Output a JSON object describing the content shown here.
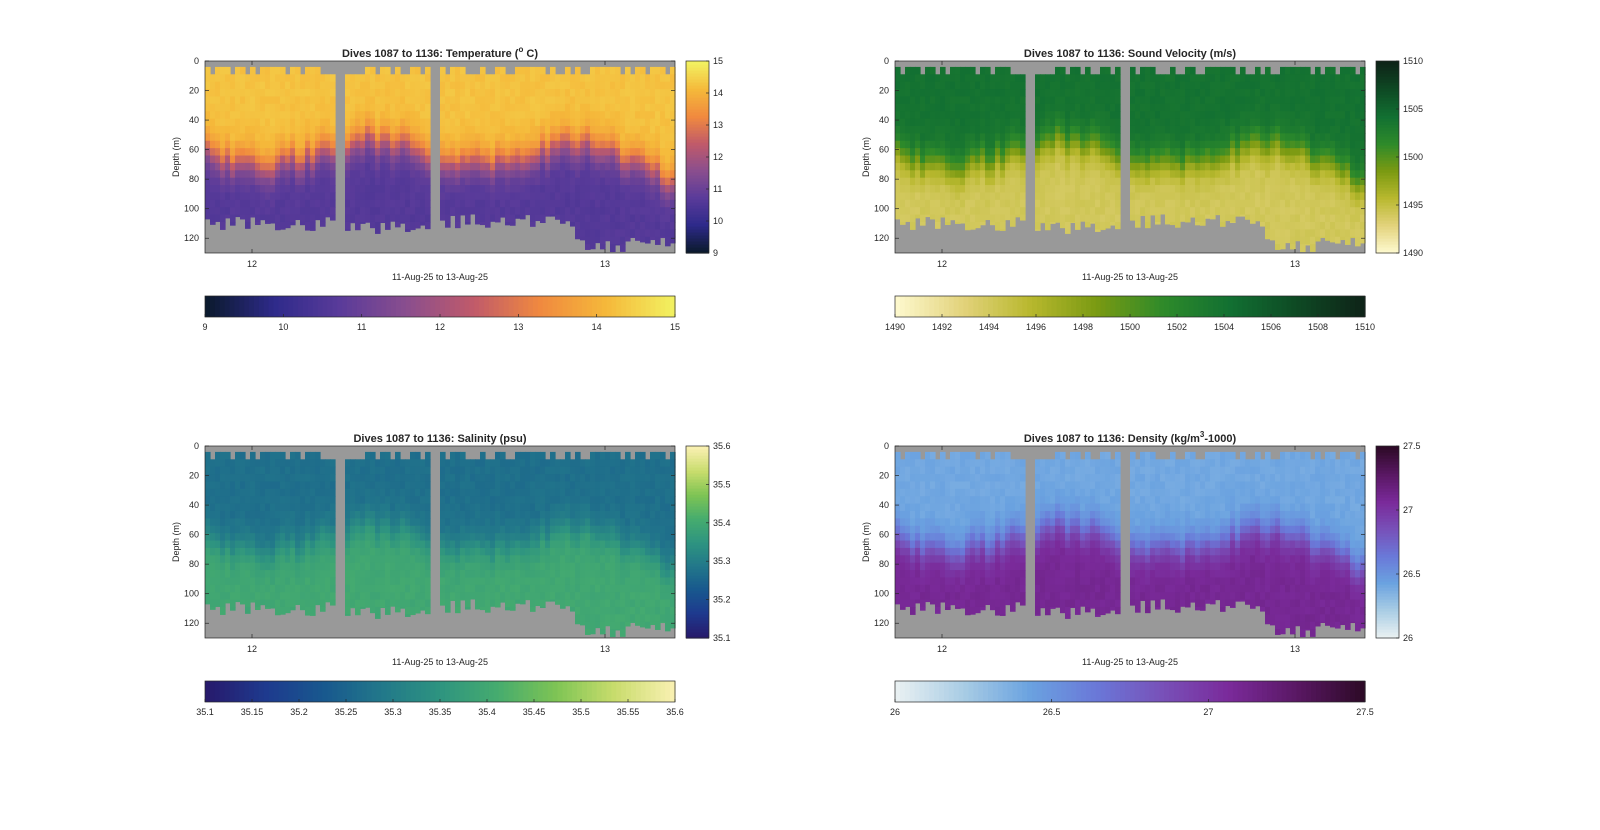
{
  "figure": {
    "background": "#ffffff",
    "mask_color": "#999999"
  },
  "chart_data": [
    {
      "type": "heatmap",
      "id": "temperature",
      "title_prefix": "Dives 1087 to 1136: Temperature (",
      "title_sup": "o",
      "title_suffix": " C)",
      "ylabel": "Depth (m)",
      "xlabel": "11-Aug-25 to 13-Aug-25",
      "x_ticks": [
        "12",
        "13"
      ],
      "y_ticks": [
        "0",
        "20",
        "40",
        "60",
        "80",
        "100",
        "120"
      ],
      "ylim": [
        0,
        130
      ],
      "y_reversed": true,
      "clim": [
        9,
        15
      ],
      "side_colorbar_ticks": [
        "9",
        "10",
        "11",
        "12",
        "13",
        "14",
        "15"
      ],
      "bottom_colorbar_ticks": [
        "9",
        "10",
        "11",
        "12",
        "13",
        "14",
        "15"
      ],
      "colormap": [
        "#0b1a2e",
        "#2e2a8a",
        "#5a3b9a",
        "#8a4e8e",
        "#c05a6a",
        "#f0893f",
        "#f5b83a",
        "#f2f060"
      ],
      "profile": {
        "surface": 14.3,
        "deep": 10.6,
        "thermocline_depth_m": 60
      }
    },
    {
      "type": "heatmap",
      "id": "sound-velocity",
      "title_prefix": "Dives 1087 to 1136: Sound Velocity (m/s)",
      "title_sup": "",
      "title_suffix": "",
      "ylabel": "Depth (m)",
      "xlabel": "11-Aug-25 to 13-Aug-25",
      "x_ticks": [
        "12",
        "13"
      ],
      "y_ticks": [
        "0",
        "20",
        "40",
        "60",
        "80",
        "100",
        "120"
      ],
      "ylim": [
        0,
        130
      ],
      "y_reversed": true,
      "clim": [
        1490,
        1510
      ],
      "side_colorbar_ticks": [
        "1490",
        "1495",
        "1500",
        "1505",
        "1510"
      ],
      "bottom_colorbar_ticks": [
        "1490",
        "1492",
        "1494",
        "1496",
        "1498",
        "1500",
        "1502",
        "1504",
        "1506",
        "1508",
        "1510"
      ],
      "colormap": [
        "#fdf8cc",
        "#e2d27a",
        "#b8b82e",
        "#7a9a12",
        "#2e8a2a",
        "#127032",
        "#0e4a24",
        "#0e2418"
      ],
      "profile": {
        "surface": 1504,
        "deep": 1494,
        "thermocline_depth_m": 60
      }
    },
    {
      "type": "heatmap",
      "id": "salinity",
      "title_prefix": "Dives 1087 to 1136: Salinity (psu)",
      "title_sup": "",
      "title_suffix": "",
      "ylabel": "Depth (m)",
      "xlabel": "11-Aug-25 to 13-Aug-25",
      "x_ticks": [
        "12",
        "13"
      ],
      "y_ticks": [
        "0",
        "20",
        "40",
        "60",
        "80",
        "100",
        "120"
      ],
      "ylim": [
        0,
        130
      ],
      "y_reversed": true,
      "clim": [
        35.1,
        35.6
      ],
      "side_colorbar_ticks": [
        "35.1",
        "35.2",
        "35.3",
        "35.4",
        "35.5",
        "35.6"
      ],
      "bottom_colorbar_ticks": [
        "35.1",
        "35.15",
        "35.2",
        "35.25",
        "35.3",
        "35.35",
        "35.4",
        "35.45",
        "35.5",
        "35.55",
        "35.6"
      ],
      "colormap": [
        "#271a6c",
        "#1e3a8e",
        "#18588e",
        "#22788a",
        "#2e9480",
        "#46ac6e",
        "#7ec454",
        "#c8dc6c",
        "#f8f0b0"
      ],
      "profile": {
        "surface": 35.27,
        "deep": 35.4,
        "thermocline_depth_m": 60
      }
    },
    {
      "type": "heatmap",
      "id": "density",
      "title_prefix": "Dives 1087 to 1136: Density (kg/m",
      "title_sup": "3",
      "title_suffix": "-1000)",
      "ylabel": "Depth (m)",
      "xlabel": "11-Aug-25 to 13-Aug-25",
      "x_ticks": [
        "12",
        "13"
      ],
      "y_ticks": [
        "0",
        "20",
        "40",
        "60",
        "80",
        "100",
        "120"
      ],
      "ylim": [
        0,
        130
      ],
      "y_reversed": true,
      "clim": [
        26,
        27.5
      ],
      "side_colorbar_ticks": [
        "26",
        "26.5",
        "27",
        "27.5"
      ],
      "bottom_colorbar_ticks": [
        "26",
        "26.5",
        "27",
        "27.5"
      ],
      "colormap": [
        "#e8f0f2",
        "#a8cce4",
        "#6aa2e0",
        "#6a78d8",
        "#7850b8",
        "#7a2a9a",
        "#5a1864",
        "#2e0a28"
      ],
      "profile": {
        "surface": 26.4,
        "deep": 27.1,
        "thermocline_depth_m": 60
      }
    }
  ]
}
